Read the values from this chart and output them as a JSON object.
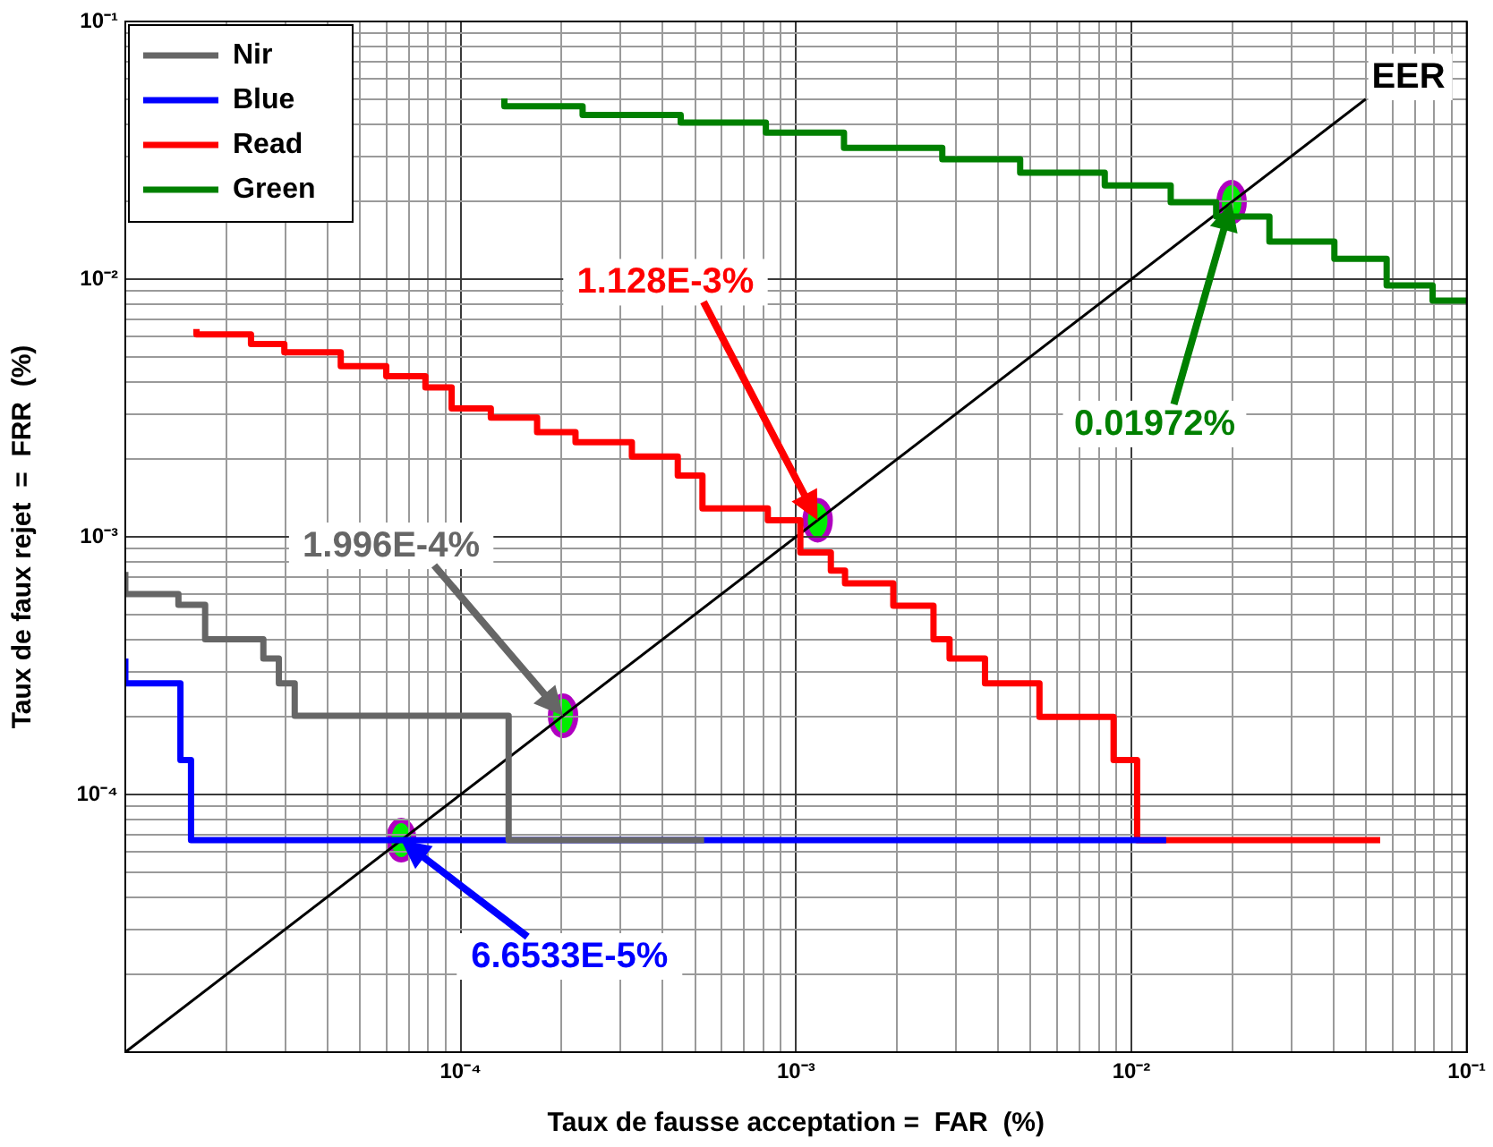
{
  "chart_data": {
    "type": "step",
    "xlabel": "Taux de fausse acceptation =  FAR  (%)",
    "ylabel": "Taux de faux rejet  =  FRR  (%)",
    "log": "xy",
    "grid": true,
    "legend": "top left",
    "xlim": [
      1e-05,
      0.1
    ],
    "ylim": [
      1e-05,
      0.1
    ],
    "xticks": [
      {
        "value": 1e-05,
        "label": null
      },
      {
        "value": 2e-05,
        "label": null
      },
      {
        "value": 3e-05,
        "label": null
      },
      {
        "value": 4e-05,
        "label": null
      },
      {
        "value": 5e-05,
        "label": null
      },
      {
        "value": 6e-05,
        "label": null
      },
      {
        "value": 7e-05,
        "label": null
      },
      {
        "value": 8e-05,
        "label": null
      },
      {
        "value": 9e-05,
        "label": null
      },
      {
        "value": 0.0001,
        "label": "10⁻⁴"
      },
      {
        "value": 0.0002,
        "label": null
      },
      {
        "value": 0.0003,
        "label": null
      },
      {
        "value": 0.0004,
        "label": null
      },
      {
        "value": 0.0005,
        "label": null
      },
      {
        "value": 0.0006,
        "label": null
      },
      {
        "value": 0.0007,
        "label": null
      },
      {
        "value": 0.0008,
        "label": null
      },
      {
        "value": 0.0009,
        "label": null
      },
      {
        "value": 0.001,
        "label": "10⁻³"
      },
      {
        "value": 0.002,
        "label": null
      },
      {
        "value": 0.003,
        "label": null
      },
      {
        "value": 0.004,
        "label": null
      },
      {
        "value": 0.005,
        "label": null
      },
      {
        "value": 0.006,
        "label": null
      },
      {
        "value": 0.007,
        "label": null
      },
      {
        "value": 0.008,
        "label": null
      },
      {
        "value": 0.009,
        "label": null
      },
      {
        "value": 0.01,
        "label": "10⁻²"
      },
      {
        "value": 0.02,
        "label": null
      },
      {
        "value": 0.03,
        "label": null
      },
      {
        "value": 0.04,
        "label": null
      },
      {
        "value": 0.05,
        "label": null
      },
      {
        "value": 0.06,
        "label": null
      },
      {
        "value": 0.07,
        "label": null
      },
      {
        "value": 0.08,
        "label": null
      },
      {
        "value": 0.09,
        "label": null
      },
      {
        "value": 0.1,
        "label": "10⁻¹"
      }
    ],
    "yticks": [
      {
        "value": 1e-05,
        "label": null
      },
      {
        "value": 2e-05,
        "label": null
      },
      {
        "value": 3e-05,
        "label": null
      },
      {
        "value": 4e-05,
        "label": null
      },
      {
        "value": 5e-05,
        "label": null
      },
      {
        "value": 6e-05,
        "label": null
      },
      {
        "value": 7e-05,
        "label": null
      },
      {
        "value": 8e-05,
        "label": null
      },
      {
        "value": 9e-05,
        "label": null
      },
      {
        "value": 0.0001,
        "label": "10⁻⁴"
      },
      {
        "value": 0.0002,
        "label": null
      },
      {
        "value": 0.0003,
        "label": null
      },
      {
        "value": 0.0004,
        "label": null
      },
      {
        "value": 0.0005,
        "label": null
      },
      {
        "value": 0.0006,
        "label": null
      },
      {
        "value": 0.0007,
        "label": null
      },
      {
        "value": 0.0008,
        "label": null
      },
      {
        "value": 0.0009,
        "label": null
      },
      {
        "value": 0.001,
        "label": "10⁻³"
      },
      {
        "value": 0.002,
        "label": null
      },
      {
        "value": 0.003,
        "label": null
      },
      {
        "value": 0.004,
        "label": null
      },
      {
        "value": 0.005,
        "label": null
      },
      {
        "value": 0.006,
        "label": null
      },
      {
        "value": 0.007,
        "label": null
      },
      {
        "value": 0.008,
        "label": null
      },
      {
        "value": 0.009,
        "label": null
      },
      {
        "value": 0.01,
        "label": "10⁻²"
      },
      {
        "value": 0.02,
        "label": null
      },
      {
        "value": 0.03,
        "label": null
      },
      {
        "value": 0.04,
        "label": null
      },
      {
        "value": 0.05,
        "label": null
      },
      {
        "value": 0.06,
        "label": null
      },
      {
        "value": 0.07,
        "label": null
      },
      {
        "value": 0.08,
        "label": null
      },
      {
        "value": 0.09,
        "label": null
      },
      {
        "value": 0.1,
        "label": "10⁻¹"
      }
    ],
    "series": [
      {
        "name": "Nir",
        "color": "#666666",
        "x": [
          1e-05,
          1.44e-05,
          1.73e-05,
          2.58e-05,
          2.87e-05,
          3.2e-05,
          0.000139,
          0.000532
        ],
        "values": [
          0.00073,
          0.0006,
          0.000545,
          0.0004,
          0.000337,
          0.00027,
          0.000202,
          6.65e-05
        ]
      },
      {
        "name": "Blue",
        "color": "#0000ff",
        "x": [
          1e-05,
          1.46e-05,
          1.57e-05,
          2.2e-05,
          0.0127
        ],
        "values": [
          0.000337,
          0.00027,
          0.000136,
          6.65e-05,
          6.65e-05
        ]
      },
      {
        "name": "Read",
        "color": "#ff0000",
        "x": [
          1.63e-05,
          2.37e-05,
          2.98e-05,
          4.39e-05,
          6e-05,
          7.85e-05,
          9.4e-05,
          0.000123,
          0.000169,
          0.00022,
          0.000324,
          0.000444,
          0.000526,
          0.000824,
          0.00103,
          0.00127,
          0.0014,
          0.00195,
          0.00257,
          0.00287,
          0.00366,
          0.00532,
          0.00885,
          0.0104,
          0.0136,
          0.0552
        ],
        "values": [
          0.0064,
          0.0061,
          0.0056,
          0.0052,
          0.0046,
          0.0042,
          0.0038,
          0.00315,
          0.0029,
          0.00255,
          0.00233,
          0.00205,
          0.00173,
          0.00129,
          0.00116,
          0.00087,
          0.00074,
          0.00066,
          0.00054,
          0.0004,
          0.000337,
          0.00027,
          0.0002,
          0.000136,
          6.65e-05,
          6.65e-05
        ]
      },
      {
        "name": "Green",
        "color": "#008000",
        "x": [
          0.000135,
          0.000231,
          0.000453,
          0.000813,
          0.00139,
          0.00273,
          0.00466,
          0.00833,
          0.0131,
          0.0179,
          0.0258,
          0.0403,
          0.0577,
          0.0791,
          0.1
        ],
        "values": [
          0.0503,
          0.0469,
          0.0434,
          0.0405,
          0.037,
          0.0323,
          0.0292,
          0.0259,
          0.0231,
          0.0199,
          0.0175,
          0.014,
          0.012,
          0.00946,
          0.00826
        ]
      },
      {
        "type": "line",
        "color": "#000000",
        "x": [
          1e-05,
          0.05
        ],
        "values": [
          1e-05,
          0.05
        ]
      }
    ],
    "annotations": [
      "1.996E-4%",
      "6.6533E-5%",
      "1.128E-3%",
      "0.01972%",
      "EER"
    ]
  }
}
